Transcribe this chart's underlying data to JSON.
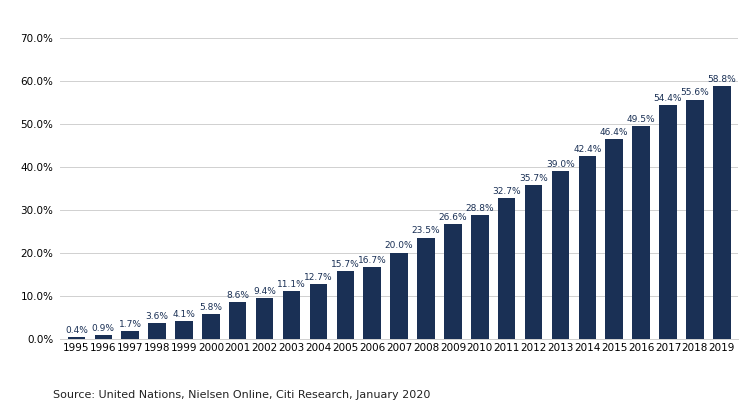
{
  "years": [
    "1995",
    "1996",
    "1997",
    "1998",
    "1999",
    "2000",
    "2001",
    "2002",
    "2003",
    "2004",
    "2005",
    "2006",
    "2007",
    "2008",
    "2009",
    "2010",
    "2011",
    "2012",
    "2013",
    "2014",
    "2015",
    "2016",
    "2017",
    "2018",
    "2019"
  ],
  "values": [
    0.4,
    0.9,
    1.7,
    3.6,
    4.1,
    5.8,
    8.6,
    9.4,
    11.1,
    12.7,
    15.7,
    16.7,
    20.0,
    23.5,
    26.6,
    28.8,
    32.7,
    35.7,
    39.0,
    42.4,
    46.4,
    49.5,
    54.4,
    55.6,
    58.8
  ],
  "labels": [
    "0.4%",
    "0.9%",
    "1.7%",
    "3.6%",
    "4.1%",
    "5.8%",
    "8.6%",
    "9.4%",
    "11.1%",
    "12.7%",
    "15.7%",
    "16.7%",
    "20.0%",
    "23.5%",
    "26.6%",
    "28.8%",
    "32.7%",
    "35.7%",
    "39.0%",
    "42.4%",
    "46.4%",
    "49.5%",
    "54.4%",
    "55.6%",
    "58.8%"
  ],
  "bar_color": "#1a3055",
  "label_color": "#1a3055",
  "grid_color": "#d0d0d0",
  "background_color": "#ffffff",
  "ytick_vals": [
    0,
    10,
    20,
    30,
    40,
    50,
    60,
    70
  ],
  "ylabel_ticks": [
    "0.0%",
    "10.0%",
    "20.0%",
    "30.0%",
    "40.0%",
    "50.0%",
    "60.0%",
    "70.0%"
  ],
  "ylim": [
    0,
    74
  ],
  "source_text": "Source: United Nations, Nielsen Online, Citi Research, January 2020",
  "label_fontsize": 6.5,
  "tick_fontsize": 7.5,
  "source_fontsize": 8
}
